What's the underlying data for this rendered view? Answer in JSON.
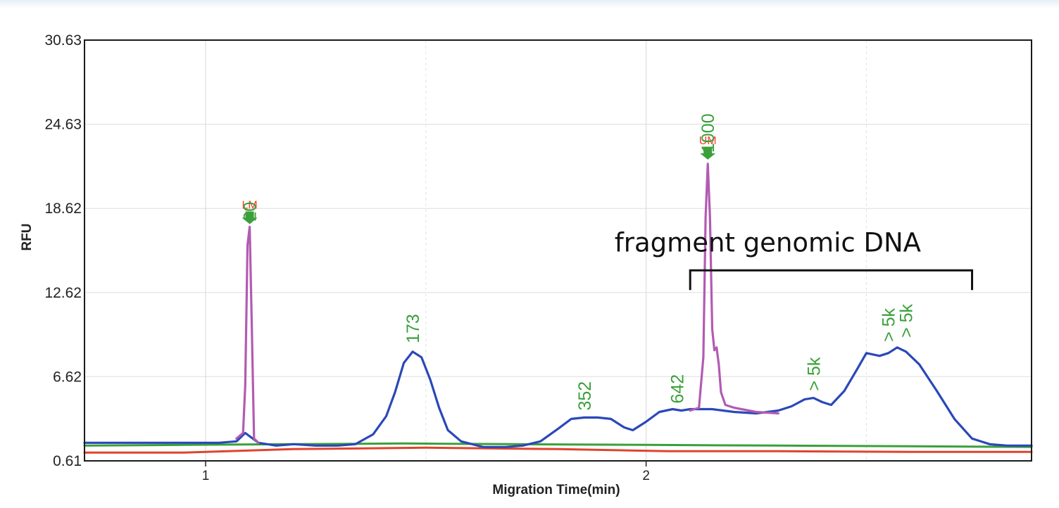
{
  "chart_data": {
    "type": "line",
    "xlabel": "Migration Time(min)",
    "ylabel": "RFU",
    "xlim": [
      0.725,
      2.875
    ],
    "ylim": [
      0.61,
      30.63
    ],
    "y_ticks": [
      "30.63",
      "24.63",
      "18.62",
      "12.62",
      "6.62",
      "0.61"
    ],
    "x_ticks": [
      "1",
      "2"
    ],
    "grid": true,
    "colors": {
      "sample": "#2a48b8",
      "marker": "#b25bb2",
      "green_baseline": "#3aa03a",
      "red_baseline": "#e0432c",
      "peak_label": "#3aa03a",
      "marker_label": "#ff3b2b"
    },
    "series": [
      {
        "color": "#2a48b8",
        "x": [
          0.725,
          0.82,
          0.92,
          0.985,
          1.03,
          1.07,
          1.09,
          1.12,
          1.16,
          1.2,
          1.25,
          1.3,
          1.34,
          1.38,
          1.41,
          1.43,
          1.45,
          1.47,
          1.49,
          1.51,
          1.53,
          1.55,
          1.58,
          1.63,
          1.68,
          1.72,
          1.76,
          1.8,
          1.83,
          1.86,
          1.89,
          1.92,
          1.95,
          1.97,
          2.0,
          2.03,
          2.06,
          2.08,
          2.1,
          2.15,
          2.2,
          2.25,
          2.3,
          2.33,
          2.36,
          2.38,
          2.4,
          2.42,
          2.45,
          2.48,
          2.5,
          2.53,
          2.55,
          2.57,
          2.59,
          2.62,
          2.66,
          2.7,
          2.74,
          2.78,
          2.82,
          2.875
        ],
        "values": [
          1.9,
          1.9,
          1.9,
          1.9,
          1.9,
          2.0,
          2.6,
          1.9,
          1.7,
          1.8,
          1.7,
          1.7,
          1.8,
          2.5,
          3.8,
          5.5,
          7.6,
          8.4,
          8.0,
          6.4,
          4.4,
          2.8,
          2.0,
          1.6,
          1.6,
          1.7,
          2.0,
          2.9,
          3.6,
          3.7,
          3.7,
          3.6,
          3.0,
          2.8,
          3.4,
          4.1,
          4.3,
          4.2,
          4.3,
          4.3,
          4.1,
          4.0,
          4.2,
          4.5,
          5.0,
          5.1,
          4.8,
          4.6,
          5.6,
          7.2,
          8.3,
          8.1,
          8.3,
          8.7,
          8.4,
          7.5,
          5.6,
          3.6,
          2.2,
          1.8,
          1.7,
          1.7
        ]
      },
      {
        "color": "#b25bb2",
        "x": [
          1.07,
          1.085,
          1.09,
          1.095,
          1.1,
          1.105,
          1.11,
          1.12
        ],
        "values": [
          2.2,
          2.6,
          6.0,
          16.0,
          17.3,
          10.0,
          2.2,
          1.9
        ]
      },
      {
        "color": "#b25bb2",
        "x": [
          2.1,
          2.12,
          2.13,
          2.135,
          2.14,
          2.145,
          2.15,
          2.155,
          2.16,
          2.165,
          2.17,
          2.18,
          2.2,
          2.25,
          2.3
        ],
        "values": [
          4.2,
          4.4,
          8.0,
          18.0,
          21.8,
          18.0,
          10.0,
          8.5,
          8.7,
          7.5,
          5.5,
          4.6,
          4.4,
          4.1,
          4.0
        ]
      },
      {
        "color": "#3aa03a",
        "x": [
          0.725,
          0.95,
          1.2,
          1.45,
          1.7,
          2.0,
          2.3,
          2.6,
          2.875
        ],
        "values": [
          1.7,
          1.75,
          1.8,
          1.85,
          1.8,
          1.75,
          1.7,
          1.65,
          1.6
        ]
      },
      {
        "color": "#e0432c",
        "x": [
          0.725,
          0.95,
          1.2,
          1.5,
          1.8,
          2.05,
          2.3,
          2.6,
          2.875
        ],
        "values": [
          1.2,
          1.2,
          1.45,
          1.55,
          1.45,
          1.3,
          1.3,
          1.25,
          1.25
        ]
      }
    ],
    "peak_labels": [
      {
        "text": "20",
        "x": 1.1,
        "y": 17.7
      },
      {
        "text": "173",
        "x": 1.47,
        "y": 9.0
      },
      {
        "text": "352",
        "x": 1.86,
        "y": 4.2
      },
      {
        "text": "642",
        "x": 2.07,
        "y": 4.7
      },
      {
        "text": "1000",
        "x": 2.14,
        "y": 22.6
      },
      {
        "text": "> 5k",
        "x": 2.38,
        "y": 5.6
      },
      {
        "text": "> 5k",
        "x": 2.55,
        "y": 9.1
      },
      {
        "text": "> 5k",
        "x": 2.59,
        "y": 9.4
      }
    ],
    "markers": [
      {
        "text": "LM",
        "x": 1.1,
        "y": 17.5
      },
      {
        "text": "UM",
        "x": 2.14,
        "y": 22.1
      }
    ],
    "annotations": [
      {
        "text": "fragment genomic DNA",
        "x_start": 2.1,
        "x_end": 2.74,
        "y": 14.2
      }
    ]
  }
}
